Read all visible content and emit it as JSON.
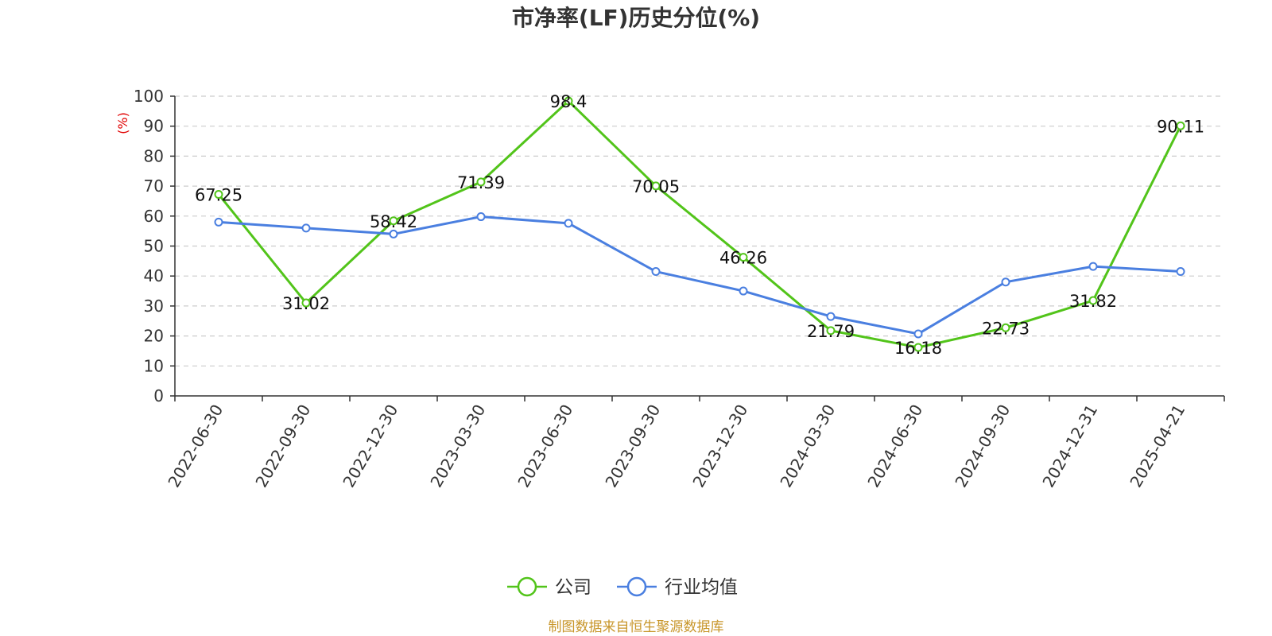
{
  "chart_data": {
    "type": "line",
    "title": "市净率(LF)历史分位(%)",
    "ylabel": "(%)",
    "ylim": [
      0,
      100
    ],
    "yticks": [
      0,
      10,
      20,
      30,
      40,
      50,
      60,
      70,
      80,
      90,
      100
    ],
    "grid": true,
    "legend_position": "bottom",
    "categories": [
      "2022-06-30",
      "2022-09-30",
      "2022-12-30",
      "2023-03-30",
      "2023-06-30",
      "2023-09-30",
      "2023-12-30",
      "2024-03-30",
      "2024-06-30",
      "2024-09-30",
      "2024-12-31",
      "2025-04-21"
    ],
    "series": [
      {
        "name": "公司",
        "color": "#52c41a",
        "labeled": true,
        "values": [
          67.25,
          31.02,
          58.42,
          71.39,
          98.4,
          70.05,
          46.26,
          21.79,
          16.18,
          22.73,
          31.82,
          90.11
        ]
      },
      {
        "name": "行业均值",
        "color": "#4a7fe0",
        "labeled": false,
        "values": [
          58,
          56,
          54,
          59.8,
          57.6,
          41.5,
          35,
          26.5,
          20.7,
          38,
          43.2,
          41.5
        ]
      }
    ]
  },
  "source_note": "制图数据来自恒生聚源数据库",
  "colors": {
    "label_unit": "#e00000",
    "source": "#c8962a",
    "axis": "#333333",
    "grid": "#cccccc"
  }
}
